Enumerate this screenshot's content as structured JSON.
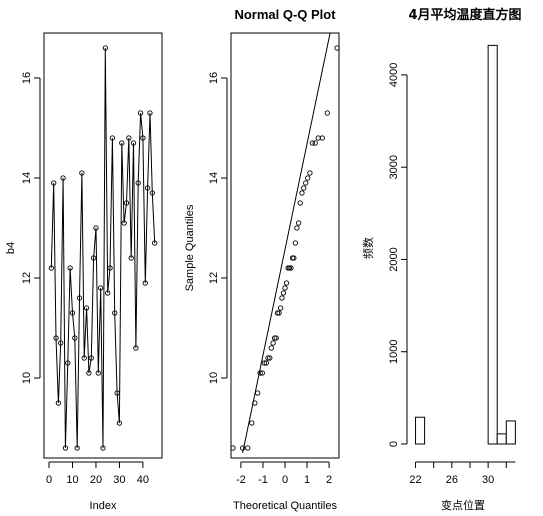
{
  "chart_data": [
    {
      "type": "line",
      "xlabel": "Index",
      "ylabel": "b4",
      "xlim": [
        0,
        46
      ],
      "ylim": [
        8.5,
        16.8
      ],
      "xticks": [
        0,
        10,
        20,
        30,
        40
      ],
      "yticks": [
        10,
        12,
        14,
        16
      ],
      "x": [
        1,
        2,
        3,
        4,
        5,
        6,
        7,
        8,
        9,
        10,
        11,
        12,
        13,
        14,
        15,
        16,
        17,
        18,
        19,
        20,
        21,
        22,
        23,
        24,
        25,
        26,
        27,
        28,
        29,
        30,
        31,
        32,
        33,
        34,
        35,
        36,
        37,
        38,
        39,
        40,
        41,
        42,
        43,
        44,
        45
      ],
      "values": [
        12.2,
        13.9,
        10.8,
        9.5,
        10.7,
        14.0,
        8.6,
        10.3,
        12.2,
        11.3,
        10.8,
        8.6,
        11.6,
        14.1,
        10.4,
        11.4,
        10.1,
        10.4,
        12.4,
        13.0,
        10.1,
        11.8,
        8.6,
        16.6,
        11.7,
        12.2,
        14.8,
        11.3,
        9.7,
        9.1,
        14.7,
        13.1,
        13.5,
        14.8,
        12.4,
        14.7,
        10.6,
        13.9,
        15.3,
        14.8,
        11.9,
        13.8,
        15.3,
        13.7,
        12.7
      ]
    },
    {
      "type": "scatter",
      "title": "Normal Q-Q Plot",
      "xlabel": "Theoretical Quantiles",
      "ylabel": "Sample Quantiles",
      "xlim": [
        -2.45,
        2.45
      ],
      "ylim": [
        8.5,
        16.8
      ],
      "xticks": [
        -2,
        -1,
        0,
        1,
        2
      ],
      "yticks": [
        10,
        12,
        14,
        16
      ],
      "x": [
        -2.36,
        -1.92,
        -1.69,
        -1.51,
        -1.37,
        -1.24,
        -1.13,
        -1.03,
        -0.94,
        -0.85,
        -0.77,
        -0.69,
        -0.62,
        -0.54,
        -0.47,
        -0.4,
        -0.34,
        -0.27,
        -0.2,
        -0.14,
        -0.07,
        0.0,
        0.07,
        0.14,
        0.2,
        0.27,
        0.34,
        0.4,
        0.47,
        0.54,
        0.62,
        0.69,
        0.77,
        0.85,
        0.94,
        1.03,
        1.13,
        1.24,
        1.37,
        1.51,
        1.69,
        1.92,
        2.36
      ],
      "values": [
        8.6,
        8.6,
        8.6,
        9.1,
        9.5,
        9.7,
        10.1,
        10.1,
        10.3,
        10.3,
        10.4,
        10.4,
        10.6,
        10.7,
        10.8,
        10.8,
        11.3,
        11.3,
        11.4,
        11.6,
        11.7,
        11.8,
        11.9,
        12.2,
        12.2,
        12.2,
        12.4,
        12.4,
        12.7,
        13.0,
        13.1,
        13.5,
        13.7,
        13.8,
        13.9,
        14.0,
        14.1,
        14.7,
        14.7,
        14.8,
        14.8,
        15.3,
        16.6
      ],
      "qqline": {
        "x1": -2.5,
        "y1": 7.25,
        "x2": 2.6,
        "y2": 18.3
      }
    },
    {
      "type": "bar",
      "title": "4月平均温度直方图",
      "xlabel": "变点位置",
      "ylabel": "频数",
      "xlim": [
        21.5,
        33.4
      ],
      "ylim": [
        0,
        4400
      ],
      "xticks": [
        22,
        26,
        30
      ],
      "yticks": [
        0,
        1000,
        2000,
        3000,
        4000
      ],
      "bins": [
        [
          22,
          23
        ],
        [
          23,
          24
        ],
        [
          24,
          25
        ],
        [
          25,
          26
        ],
        [
          26,
          27
        ],
        [
          27,
          28
        ],
        [
          28,
          29
        ],
        [
          29,
          30
        ],
        [
          30,
          31
        ],
        [
          31,
          32
        ],
        [
          32,
          33
        ]
      ],
      "values": [
        290,
        0,
        0,
        0,
        0,
        0,
        0,
        0,
        4320,
        110,
        250
      ]
    }
  ]
}
